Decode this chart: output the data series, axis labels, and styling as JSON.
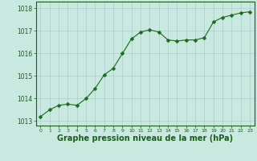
{
  "x": [
    0,
    1,
    2,
    3,
    4,
    5,
    6,
    7,
    8,
    9,
    10,
    11,
    12,
    13,
    14,
    15,
    16,
    17,
    18,
    19,
    20,
    21,
    22,
    23
  ],
  "y": [
    1013.2,
    1013.5,
    1013.7,
    1013.75,
    1013.7,
    1014.0,
    1014.45,
    1015.05,
    1015.35,
    1016.0,
    1016.65,
    1016.95,
    1017.05,
    1016.95,
    1016.6,
    1016.55,
    1016.6,
    1016.6,
    1016.7,
    1017.4,
    1017.6,
    1017.7,
    1017.8,
    1017.85
  ],
  "line_color": "#1a6b1a",
  "marker": "D",
  "marker_size": 2.5,
  "bg_color": "#c8e8e0",
  "grid_color": "#aacfca",
  "title": "Graphe pression niveau de la mer (hPa)",
  "title_color": "#1a5e1a",
  "title_fontsize": 7,
  "tick_color": "#1a5e1a",
  "axis_color": "#1a5e1a",
  "ylim": [
    1012.8,
    1018.3
  ],
  "xlim": [
    -0.5,
    23.5
  ],
  "yticks": [
    1013,
    1014,
    1015,
    1016,
    1017,
    1018
  ],
  "xticks": [
    0,
    1,
    2,
    3,
    4,
    5,
    6,
    7,
    8,
    9,
    10,
    11,
    12,
    13,
    14,
    15,
    16,
    17,
    18,
    19,
    20,
    21,
    22,
    23
  ]
}
